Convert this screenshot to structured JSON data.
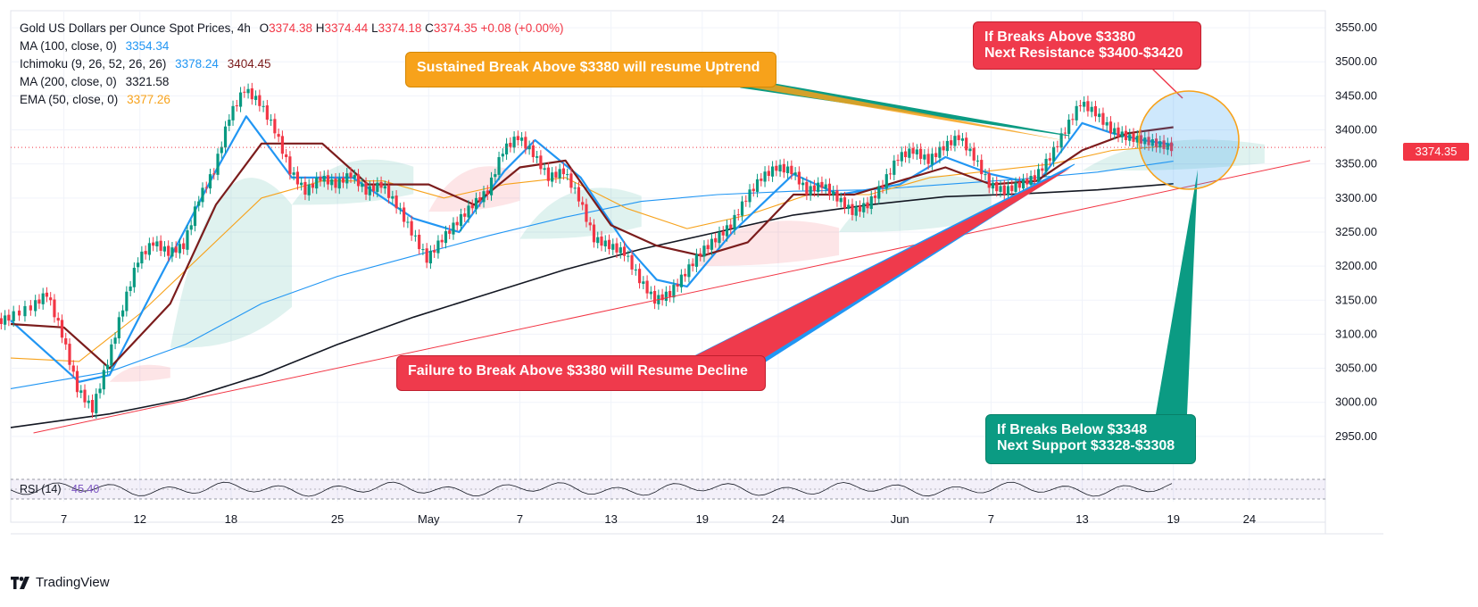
{
  "legend": {
    "title": "Gold US Dollars per Ounce Spot Prices, 4h",
    "ohlc": [
      {
        "label": "O",
        "value": "3374.38"
      },
      {
        "label": "H",
        "value": "3374.44"
      },
      {
        "label": "L",
        "value": "3374.18"
      },
      {
        "label": "C",
        "value": "3374.35"
      }
    ],
    "change": "+0.08 (+0.00%)",
    "indicators": [
      {
        "name": "MA (100, close, 0)",
        "values": [
          "3354.34"
        ],
        "colors": [
          "#2196f3"
        ]
      },
      {
        "name": "Ichimoku (9, 26, 52, 26, 26)",
        "values": [
          "3378.24",
          "3404.45"
        ],
        "colors": [
          "#2196f3",
          "#7b1c1c"
        ]
      },
      {
        "name": "MA (200, close, 0)",
        "values": [
          "3321.58"
        ],
        "colors": [
          "#131722"
        ]
      },
      {
        "name": "EMA (50, close, 0)",
        "values": [
          "3377.26"
        ],
        "colors": [
          "#f7a21b"
        ]
      }
    ]
  },
  "current_price": "3374.35",
  "rsi_label": "RSI (14)",
  "rsi_value": "45.40",
  "annotations": {
    "uptrend": "Sustained Break Above $3380 will resume Uptrend",
    "decline": "Failure to Break Above $3380 will Resume Decline",
    "resistance_line1": "If Breaks Above $3380",
    "resistance_line2": "Next Resistance $3400-$3420",
    "support_line1": "If Breaks Below $3348",
    "support_line2": "Next Support $3328-$3308"
  },
  "branding": "TradingView",
  "colors": {
    "up": "#089981",
    "down": "#f23645",
    "ma100": "#2196f3",
    "ma200": "#131722",
    "ema50": "#f7a21b",
    "ichimoku_base": "#7b1c1c",
    "orange_callout": "#f7a21b",
    "red_callout": "#ef3a4c",
    "green_callout": "#0b9b83"
  },
  "chart_data": {
    "type": "candlestick",
    "title": "Gold US Dollars per Ounce Spot Prices, 4h",
    "xlabel": "",
    "ylabel": "",
    "ylim": [
      2900,
      3575
    ],
    "y_ticks": [
      "3550.00",
      "3500.00",
      "3450.00",
      "3400.00",
      "3350.00",
      "3300.00",
      "3250.00",
      "3200.00",
      "3150.00",
      "3100.00",
      "3050.00",
      "3000.00",
      "2950.00"
    ],
    "x_ticks": [
      "7",
      "12",
      "18",
      "25",
      "May",
      "7",
      "13",
      "19",
      "24",
      "Jun",
      "7",
      "13",
      "19",
      "24"
    ],
    "x_tick_days": [
      7,
      12,
      18,
      25,
      31,
      37,
      43,
      49,
      54,
      62,
      68,
      74,
      80,
      85
    ],
    "first_day": 3.5,
    "last_day": 90,
    "price_series": {
      "name": "Close",
      "points": [
        [
          3.5,
          3125
        ],
        [
          5,
          3140
        ],
        [
          6,
          3160
        ],
        [
          7,
          3100
        ],
        [
          8,
          3020
        ],
        [
          9,
          2990
        ],
        [
          10,
          3060
        ],
        [
          11,
          3140
        ],
        [
          12,
          3210
        ],
        [
          13,
          3235
        ],
        [
          14,
          3220
        ],
        [
          15,
          3230
        ],
        [
          16,
          3300
        ],
        [
          17,
          3340
        ],
        [
          18,
          3420
        ],
        [
          19,
          3460
        ],
        [
          20,
          3440
        ],
        [
          21,
          3400
        ],
        [
          22,
          3340
        ],
        [
          23,
          3310
        ],
        [
          24,
          3330
        ],
        [
          25,
          3320
        ],
        [
          26,
          3335
        ],
        [
          27,
          3310
        ],
        [
          28,
          3320
        ],
        [
          29,
          3290
        ],
        [
          30,
          3250
        ],
        [
          31,
          3210
        ],
        [
          32,
          3240
        ],
        [
          33,
          3265
        ],
        [
          34,
          3290
        ],
        [
          35,
          3310
        ],
        [
          36,
          3370
        ],
        [
          37,
          3390
        ],
        [
          38,
          3365
        ],
        [
          39,
          3330
        ],
        [
          40,
          3340
        ],
        [
          41,
          3300
        ],
        [
          42,
          3240
        ],
        [
          43,
          3230
        ],
        [
          44,
          3220
        ],
        [
          45,
          3180
        ],
        [
          46,
          3150
        ],
        [
          47,
          3160
        ],
        [
          48,
          3190
        ],
        [
          49,
          3220
        ],
        [
          50,
          3240
        ],
        [
          51,
          3260
        ],
        [
          52,
          3300
        ],
        [
          53,
          3330
        ],
        [
          54,
          3345
        ],
        [
          55,
          3340
        ],
        [
          56,
          3310
        ],
        [
          57,
          3320
        ],
        [
          58,
          3300
        ],
        [
          59,
          3280
        ],
        [
          60,
          3290
        ],
        [
          61,
          3320
        ],
        [
          62,
          3360
        ],
        [
          63,
          3370
        ],
        [
          64,
          3355
        ],
        [
          65,
          3375
        ],
        [
          66,
          3390
        ],
        [
          67,
          3360
        ],
        [
          68,
          3320
        ],
        [
          69,
          3310
        ],
        [
          70,
          3320
        ],
        [
          71,
          3330
        ],
        [
          72,
          3360
        ],
        [
          73,
          3400
        ],
        [
          74,
          3440
        ],
        [
          75,
          3425
        ],
        [
          76,
          3400
        ],
        [
          77,
          3390
        ],
        [
          78,
          3385
        ],
        [
          79,
          3380
        ],
        [
          80,
          3374
        ]
      ]
    },
    "series": [
      {
        "name": "MA (100, close, 0)",
        "color": "#2196f3",
        "points": [
          [
            3.5,
            3020
          ],
          [
            10,
            3045
          ],
          [
            15,
            3085
          ],
          [
            20,
            3145
          ],
          [
            25,
            3185
          ],
          [
            30,
            3215
          ],
          [
            35,
            3245
          ],
          [
            40,
            3272
          ],
          [
            45,
            3295
          ],
          [
            50,
            3305
          ],
          [
            55,
            3310
          ],
          [
            60,
            3312
          ],
          [
            65,
            3320
          ],
          [
            70,
            3328
          ],
          [
            75,
            3338
          ],
          [
            80,
            3354
          ]
        ]
      },
      {
        "name": "MA (200, close, 0)",
        "color": "#131722",
        "points": [
          [
            3.5,
            2963
          ],
          [
            10,
            2983
          ],
          [
            15,
            3005
          ],
          [
            20,
            3040
          ],
          [
            25,
            3085
          ],
          [
            30,
            3125
          ],
          [
            35,
            3160
          ],
          [
            40,
            3195
          ],
          [
            45,
            3225
          ],
          [
            50,
            3250
          ],
          [
            55,
            3275
          ],
          [
            60,
            3290
          ],
          [
            65,
            3302
          ],
          [
            70,
            3306
          ],
          [
            75,
            3312
          ],
          [
            80,
            3321
          ]
        ]
      },
      {
        "name": "EMA (50, close, 0)",
        "color": "#f7a21b",
        "points": [
          [
            3.5,
            3065
          ],
          [
            8,
            3060
          ],
          [
            12,
            3130
          ],
          [
            16,
            3215
          ],
          [
            20,
            3300
          ],
          [
            24,
            3325
          ],
          [
            28,
            3325
          ],
          [
            32,
            3300
          ],
          [
            36,
            3320
          ],
          [
            40,
            3330
          ],
          [
            44,
            3285
          ],
          [
            48,
            3255
          ],
          [
            52,
            3275
          ],
          [
            56,
            3305
          ],
          [
            60,
            3305
          ],
          [
            64,
            3330
          ],
          [
            68,
            3340
          ],
          [
            72,
            3350
          ],
          [
            76,
            3370
          ],
          [
            80,
            3377
          ]
        ]
      },
      {
        "name": "Ichimoku Conversion",
        "color": "#2196f3",
        "points": [
          [
            3.5,
            3120
          ],
          [
            8,
            3030
          ],
          [
            10,
            3040
          ],
          [
            13,
            3170
          ],
          [
            17,
            3340
          ],
          [
            19,
            3420
          ],
          [
            22,
            3330
          ],
          [
            26,
            3330
          ],
          [
            30,
            3270
          ],
          [
            33,
            3250
          ],
          [
            36,
            3340
          ],
          [
            38,
            3385
          ],
          [
            41,
            3330
          ],
          [
            44,
            3230
          ],
          [
            46,
            3180
          ],
          [
            48,
            3170
          ],
          [
            51,
            3250
          ],
          [
            55,
            3335
          ],
          [
            58,
            3305
          ],
          [
            62,
            3320
          ],
          [
            65,
            3360
          ],
          [
            68,
            3335
          ],
          [
            71,
            3320
          ],
          [
            74,
            3410
          ],
          [
            76,
            3395
          ],
          [
            78,
            3385
          ],
          [
            80,
            3378
          ]
        ]
      },
      {
        "name": "Ichimoku Base",
        "color": "#7b1c1c",
        "points": [
          [
            3.5,
            3115
          ],
          [
            7,
            3110
          ],
          [
            10,
            3050
          ],
          [
            14,
            3145
          ],
          [
            17,
            3290
          ],
          [
            20,
            3380
          ],
          [
            24,
            3380
          ],
          [
            27,
            3320
          ],
          [
            31,
            3320
          ],
          [
            34,
            3290
          ],
          [
            37,
            3345
          ],
          [
            40,
            3355
          ],
          [
            43,
            3260
          ],
          [
            46,
            3230
          ],
          [
            49,
            3215
          ],
          [
            52,
            3235
          ],
          [
            55,
            3305
          ],
          [
            59,
            3305
          ],
          [
            62,
            3325
          ],
          [
            65,
            3345
          ],
          [
            68,
            3320
          ],
          [
            71,
            3325
          ],
          [
            74,
            3370
          ],
          [
            77,
            3395
          ],
          [
            80,
            3404
          ]
        ]
      }
    ],
    "cloud": [
      {
        "from": 10,
        "to": 14,
        "top": 3060,
        "bottom": 3030,
        "color": "#f23645"
      },
      {
        "from": 14,
        "to": 22,
        "top": 3380,
        "bottom": 3080,
        "color": "#089981"
      },
      {
        "from": 22,
        "to": 30,
        "top": 3370,
        "bottom": 3290,
        "color": "#089981"
      },
      {
        "from": 31,
        "to": 37,
        "top": 3360,
        "bottom": 3280,
        "color": "#f23645"
      },
      {
        "from": 37,
        "to": 45,
        "top": 3330,
        "bottom": 3240,
        "color": "#089981"
      },
      {
        "from": 48,
        "to": 58,
        "top": 3280,
        "bottom": 3200,
        "color": "#f23645"
      },
      {
        "from": 58,
        "to": 68,
        "top": 3350,
        "bottom": 3250,
        "color": "#089981"
      },
      {
        "from": 74,
        "to": 86,
        "top": 3395,
        "bottom": 3340,
        "color": "#089981"
      }
    ],
    "trendline": {
      "from": [
        5,
        2955
      ],
      "to": [
        89,
        3355
      ]
    },
    "rsi": {
      "name": "RSI (14)",
      "value": 45.4
    }
  }
}
